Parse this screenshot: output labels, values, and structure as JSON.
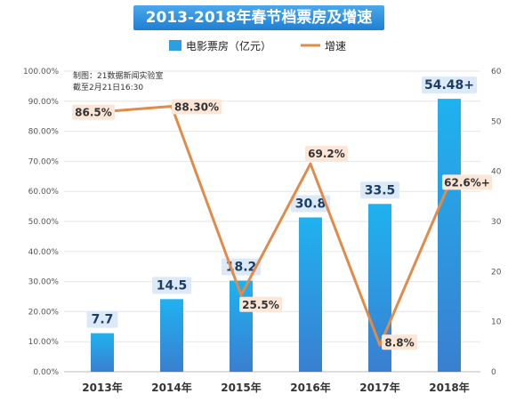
{
  "chart_data": {
    "type": "bar+line",
    "title": "2013-2018年春节档票房及增速",
    "note_lines": [
      "制图：21数据新闻实验室",
      "截至2月21日16:30"
    ],
    "categories": [
      "2013年",
      "2014年",
      "2015年",
      "2016年",
      "2017年",
      "2018年"
    ],
    "series": [
      {
        "name": "电影票房（亿元）",
        "type": "bar",
        "axis": "right",
        "values": [
          7.7,
          14.5,
          18.2,
          30.8,
          33.5,
          54.48
        ],
        "labels": [
          "7.7",
          "14.5",
          "18.2",
          "30.8",
          "33.5",
          "54.48+"
        ],
        "color": "#2a9fe3"
      },
      {
        "name": "增速",
        "type": "line",
        "axis": "left",
        "values": [
          86.5,
          88.3,
          25.5,
          69.2,
          8.8,
          62.6
        ],
        "labels": [
          "86.5%",
          "88.30%",
          "25.5%",
          "69.2%",
          "8.8%",
          "62.6%+"
        ],
        "color": "#e08b4a"
      }
    ],
    "y_left": {
      "min": 0,
      "max": 100,
      "ticks": [
        "0.00%",
        "10.00%",
        "20.00%",
        "30.00%",
        "40.00%",
        "50.00%",
        "60.00%",
        "70.00%",
        "80.00%",
        "90.00%",
        "100.00%"
      ]
    },
    "y_right": {
      "min": 0,
      "max": 60,
      "ticks": [
        "0",
        "10",
        "20",
        "30",
        "40",
        "50",
        "60"
      ]
    },
    "grid": true,
    "legend_position": "top"
  }
}
